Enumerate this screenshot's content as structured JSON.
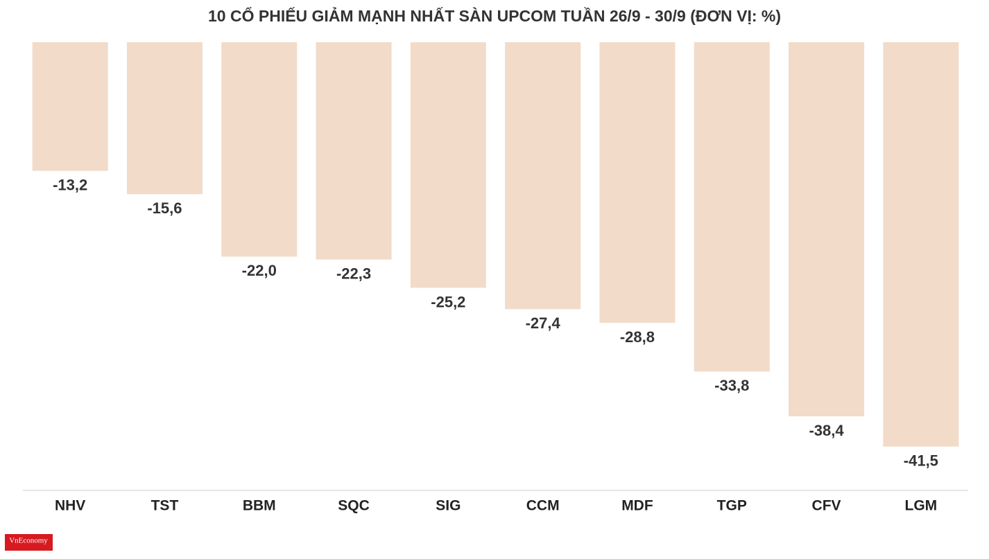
{
  "chart_data": {
    "type": "bar",
    "title": "10 CỔ PHIẾU GIẢM MẠNH NHẤT SÀN UPCOM TUẦN 26/9 - 30/9 (ĐƠN VỊ: %)",
    "categories": [
      "NHV",
      "TST",
      "BBM",
      "SQC",
      "SIG",
      "CCM",
      "MDF",
      "TGP",
      "CFV",
      "LGM"
    ],
    "values": [
      -13.2,
      -15.6,
      -22.0,
      -22.3,
      -25.2,
      -27.4,
      -28.8,
      -33.8,
      -38.4,
      -41.5
    ],
    "value_labels": [
      "-13,2",
      "-15,6",
      "-22,0",
      "-22,3",
      "-25,2",
      "-27,4",
      "-28,8",
      "-33,8",
      "-38,4",
      "-41,5"
    ],
    "color": "#f2dbc9",
    "ylim": [
      -46,
      0
    ],
    "grid": false
  },
  "logo": "VnEconomy"
}
